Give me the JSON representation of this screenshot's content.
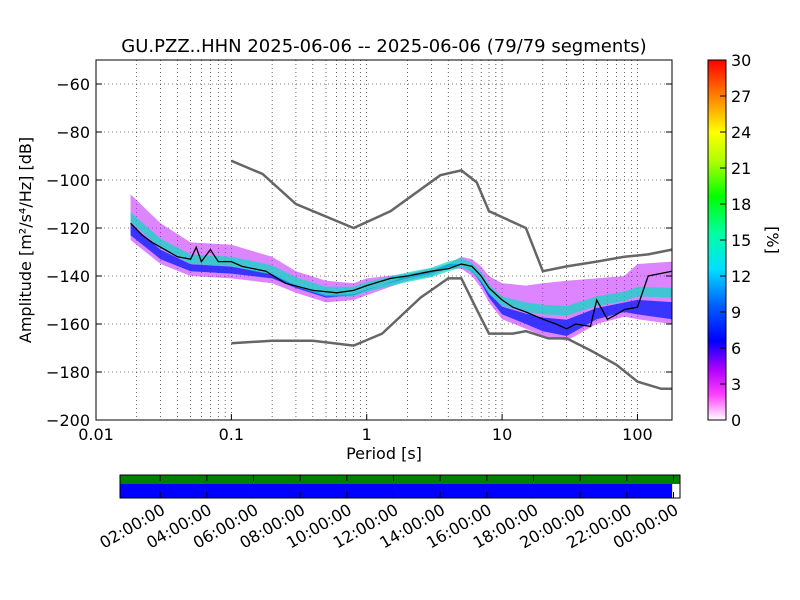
{
  "chart_data": {
    "type": "heatmap",
    "title": "GU.PZZ..HHN   2025-06-06 -- 2025-06-06  (79/79 segments)",
    "xlabel": "Period [s]",
    "ylabel": "Amplitude [m²/s⁴/Hz] [dB]",
    "xscale": "log",
    "xlim": [
      0.01,
      180
    ],
    "ylim": [
      -200,
      -50
    ],
    "grid": true,
    "x_ticks": [
      0.01,
      0.1,
      1,
      10,
      100
    ],
    "x_tick_labels": [
      "0.01",
      "0.1",
      "1",
      "10",
      "100"
    ],
    "y_ticks": [
      -200,
      -180,
      -160,
      -140,
      -120,
      -100,
      -80,
      -60
    ],
    "y_tick_labels": [
      "−200",
      "−180",
      "−160",
      "−140",
      "−120",
      "−100",
      "−80",
      "−60"
    ],
    "colorbar": {
      "label": "[%]",
      "range": [
        0,
        30
      ],
      "ticks": [
        0,
        3,
        6,
        9,
        12,
        15,
        18,
        21,
        24,
        27,
        30
      ],
      "tick_labels": [
        "0",
        "3",
        "6",
        "9",
        "12",
        "15",
        "18",
        "21",
        "24",
        "27",
        "30"
      ]
    },
    "series": [
      {
        "name": "",
        "color": "#666666",
        "x": [
          0.1,
          0.17,
          0.3,
          0.8,
          1.5,
          3.5,
          5,
          6.5,
          8,
          15,
          20,
          30,
          50,
          80,
          120,
          180
        ],
        "y": [
          -92,
          -97.5,
          -110,
          -120,
          -113,
          -98,
          -96,
          -101,
          -113,
          -120,
          -138,
          -136,
          -134,
          -132,
          -131,
          -129
        ]
      },
      {
        "name": "",
        "color": "#666666",
        "x": [
          0.1,
          0.2,
          0.4,
          0.8,
          1.3,
          2.5,
          4,
          5,
          6.5,
          8,
          10,
          12,
          15,
          22,
          30,
          45,
          70,
          100,
          150,
          180
        ],
        "y": [
          -168,
          -167,
          -167,
          -169,
          -164,
          -149,
          -141,
          -141,
          -154,
          -164,
          -164,
          -164,
          -163,
          -166,
          -166,
          -171,
          -177,
          -184,
          -187,
          -187
        ]
      },
      {
        "name": "",
        "color": "#000000",
        "x": [
          0.018,
          0.022,
          0.026,
          0.03,
          0.04,
          0.05,
          0.055,
          0.06,
          0.07,
          0.08,
          0.1,
          0.12,
          0.18,
          0.25,
          0.4,
          0.6,
          0.8,
          1.0,
          1.5,
          2,
          3,
          4,
          5,
          6,
          7,
          8,
          10,
          12,
          15,
          20,
          25,
          30,
          35,
          45,
          50,
          60,
          70,
          80,
          100,
          120,
          180
        ],
        "y": [
          -118,
          -123,
          -126,
          -128,
          -132,
          -133,
          -128,
          -134,
          -129,
          -134,
          -134,
          -136,
          -138,
          -143,
          -146,
          -147,
          -146,
          -144,
          -141,
          -140,
          -138,
          -137,
          -135,
          -136,
          -140,
          -145,
          -150,
          -153,
          -155,
          -158,
          -160,
          -162,
          -160,
          -161,
          -150,
          -158,
          -156,
          -154,
          -153,
          -140,
          -138
        ]
      }
    ],
    "heatmap_band": {
      "x": [
        0.018,
        0.03,
        0.05,
        0.1,
        0.2,
        0.3,
        0.5,
        0.8,
        1,
        2,
        3,
        4,
        5,
        6,
        7,
        8,
        10,
        15,
        20,
        30,
        50,
        80,
        100,
        180
      ],
      "upper": [
        -106,
        -118,
        -126,
        -127,
        -132,
        -138,
        -142,
        -143,
        -141,
        -139,
        -137,
        -135,
        -132,
        -133,
        -136,
        -140,
        -143,
        -144,
        -143,
        -142,
        -141,
        -140,
        -135,
        -134
      ],
      "lower": [
        -125,
        -135,
        -140,
        -141,
        -143,
        -147,
        -151,
        -150,
        -148,
        -142,
        -140,
        -137,
        -137,
        -140,
        -145,
        -151,
        -158,
        -162,
        -165,
        -167,
        -160,
        -157,
        -158,
        -160
      ]
    },
    "time_bar": {
      "tick_labels": [
        "02:00:00",
        "04:00:00",
        "06:00:00",
        "08:00:00",
        "10:00:00",
        "12:00:00",
        "14:00:00",
        "16:00:00",
        "18:00:00",
        "20:00:00",
        "22:00:00",
        "00:00:00"
      ],
      "coverage_color": "#0000ff",
      "data_color": "#008000",
      "coverage_fraction": 0.986
    }
  }
}
